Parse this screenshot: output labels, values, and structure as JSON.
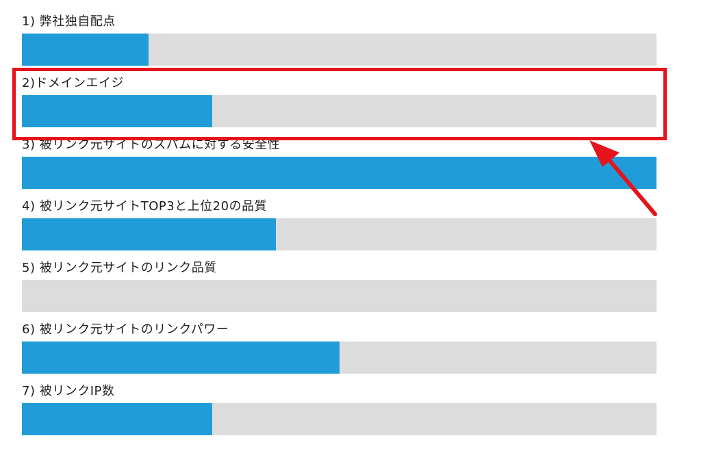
{
  "chart_data": {
    "type": "bar",
    "orientation": "horizontal",
    "categories": [
      "1) 弊社独自配点",
      "2)ドメインエイジ",
      "3) 被リンク元サイトのスパムに対する安全性",
      "4) 被リンク元サイトTOP3と上位20の品質",
      "5) 被リンク元サイトのリンク品質",
      "6) 被リンク元サイトのリンクパワー",
      "7) 被リンクIP数"
    ],
    "values": [
      20,
      30,
      100,
      40,
      0,
      50,
      30
    ],
    "xlim": [
      0,
      100
    ],
    "grid": false,
    "legend": "none"
  },
  "colors": {
    "bar_fill": "#209dd8",
    "bar_track": "#dcdcdc",
    "highlight": "#e5141c",
    "label_text": "#1e1e1e"
  },
  "annotation": {
    "highlighted_category_index": 1,
    "shape": "rectangle-with-arrow"
  }
}
